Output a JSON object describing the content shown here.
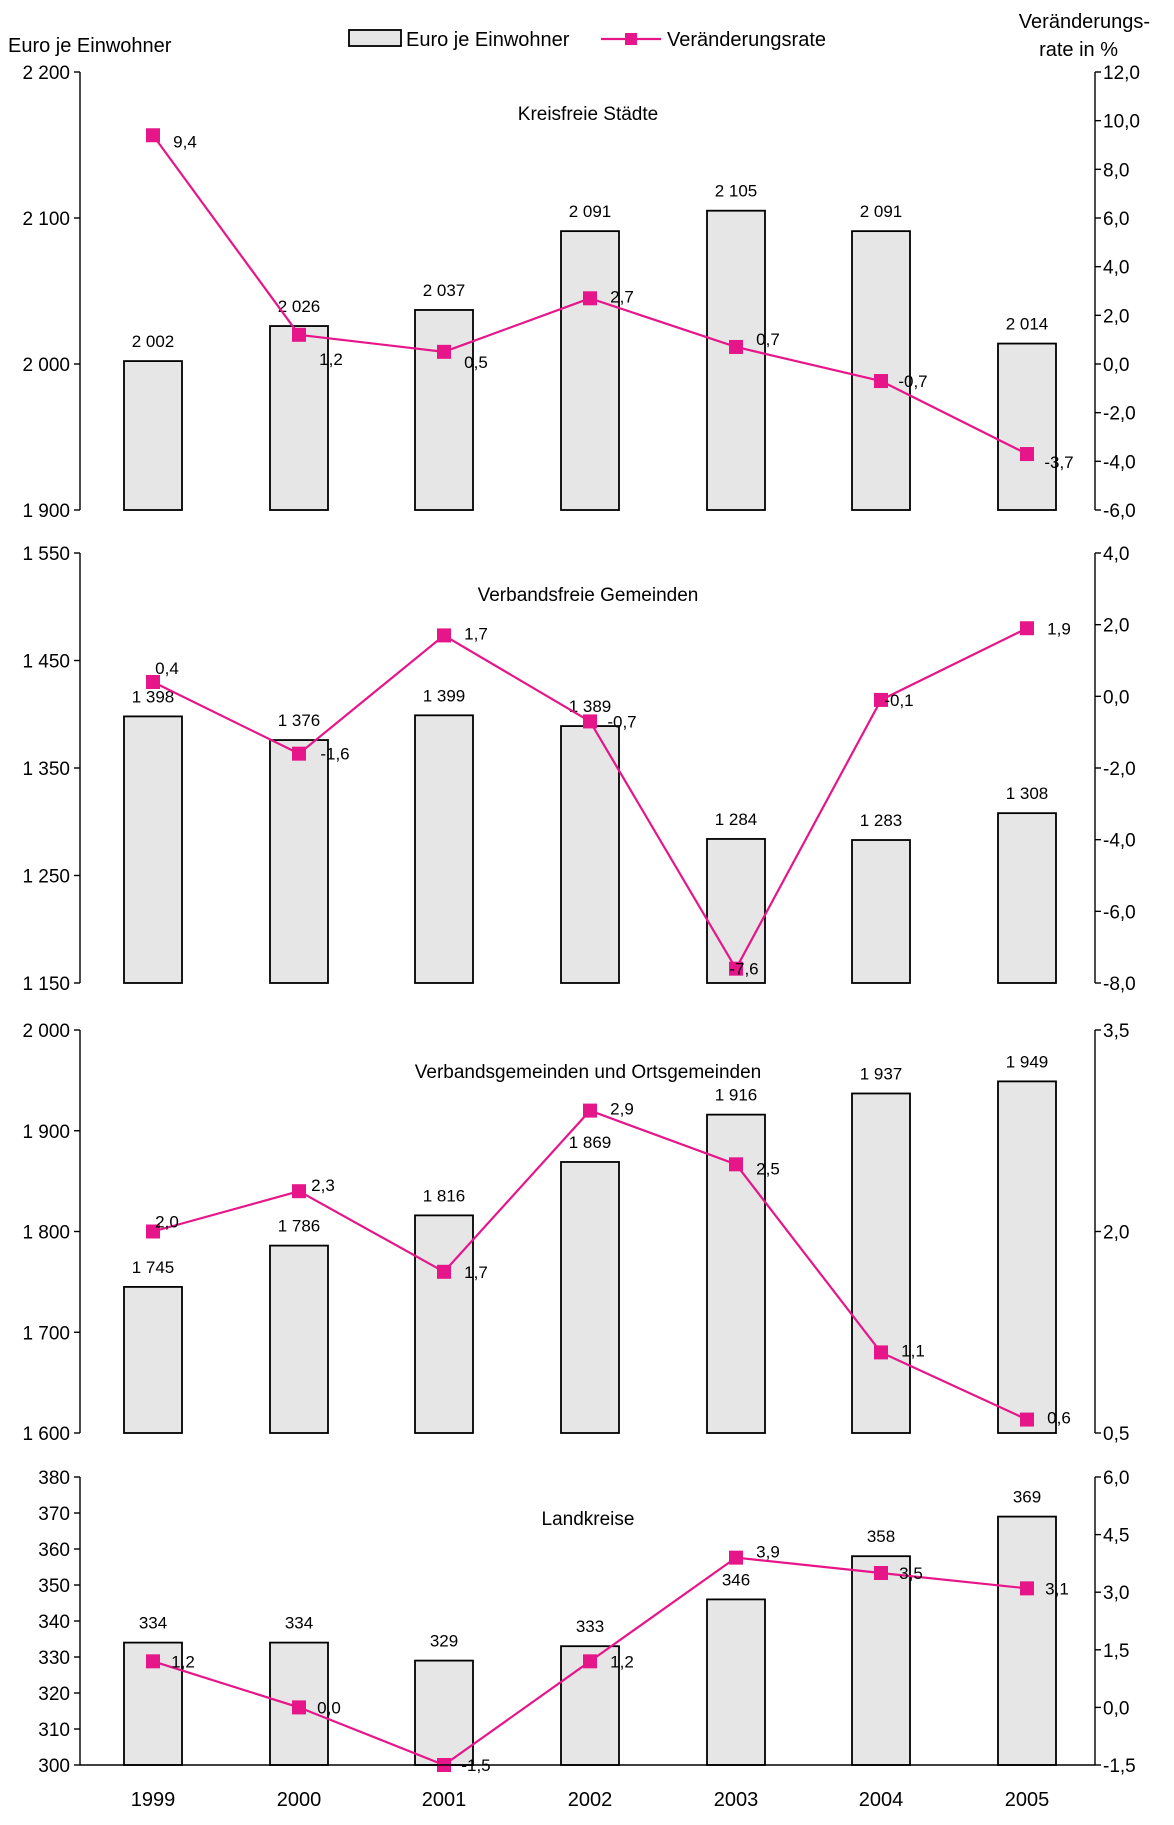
{
  "legend": {
    "bar_label": "Euro je Einwohner",
    "line_label": "Veränderungsrate"
  },
  "left_axis_title": "Euro je Einwohner",
  "right_axis_title_line1": "Veränderungs-",
  "right_axis_title_line2": "rate in %",
  "colors": {
    "bar_fill": "#e6e6e6",
    "line": "#e6168a",
    "axis": "#000000"
  },
  "categories": [
    "1999",
    "2000",
    "2001",
    "2002",
    "2003",
    "2004",
    "2005"
  ],
  "chart_data": [
    {
      "type": "bar",
      "title": "Kreisfreie Städte",
      "categories": [
        "1999",
        "2000",
        "2001",
        "2002",
        "2003",
        "2004",
        "2005"
      ],
      "series": [
        {
          "name": "Euro je Einwohner",
          "type": "bar",
          "axis": "left",
          "values": [
            2002,
            2026,
            2037,
            2091,
            2105,
            2091,
            2014
          ],
          "labels": [
            "2 002",
            "2 026",
            "2 037",
            "2 091",
            "2 105",
            "2 091",
            "2 014"
          ]
        },
        {
          "name": "Veränderungsrate",
          "type": "line",
          "axis": "right",
          "values": [
            9.4,
            1.2,
            0.5,
            2.7,
            0.7,
            -0.7,
            -3.7
          ],
          "labels": [
            "9,4",
            "1,2",
            "0,5",
            "2,7",
            "0,7",
            "-0,7",
            "-3,7"
          ]
        }
      ],
      "ylim": [
        1900,
        2200
      ],
      "yticks": [
        "1 900",
        "2 000",
        "2 100",
        "2 200"
      ],
      "y2lim": [
        -6,
        12
      ],
      "y2ticks": [
        "-6,0",
        "-4,0",
        "-2,0",
        "0,0",
        "2,0",
        "4,0",
        "6,0",
        "8,0",
        "10,0",
        "12,0"
      ]
    },
    {
      "type": "bar",
      "title": "Verbandsfreie Gemeinden",
      "categories": [
        "1999",
        "2000",
        "2001",
        "2002",
        "2003",
        "2004",
        "2005"
      ],
      "series": [
        {
          "name": "Euro je Einwohner",
          "type": "bar",
          "axis": "left",
          "values": [
            1398,
            1376,
            1399,
            1389,
            1284,
            1283,
            1308
          ],
          "labels": [
            "1 398",
            "1 376",
            "1 399",
            "1 389",
            "1 284",
            "1 283",
            "1 308"
          ]
        },
        {
          "name": "Veränderungsrate",
          "type": "line",
          "axis": "right",
          "values": [
            0.4,
            -1.6,
            1.7,
            -0.7,
            -7.6,
            -0.1,
            1.9
          ],
          "labels": [
            "0,4",
            "-1,6",
            "1,7",
            "-0,7",
            "-7,6",
            "-0,1",
            "1,9"
          ]
        }
      ],
      "ylim": [
        1150,
        1550
      ],
      "yticks": [
        "1 150",
        "1 250",
        "1 350",
        "1 450",
        "1 550"
      ],
      "y2lim": [
        -8,
        4
      ],
      "y2ticks": [
        "-8,0",
        "-6,0",
        "-4,0",
        "-2,0",
        "0,0",
        "2,0",
        "4,0"
      ]
    },
    {
      "type": "bar",
      "title": "Verbandsgemeinden und Ortsgemeinden",
      "categories": [
        "1999",
        "2000",
        "2001",
        "2002",
        "2003",
        "2004",
        "2005"
      ],
      "series": [
        {
          "name": "Euro je Einwohner",
          "type": "bar",
          "axis": "left",
          "values": [
            1745,
            1786,
            1816,
            1869,
            1916,
            1937,
            1949
          ],
          "labels": [
            "1 745",
            "1 786",
            "1 816",
            "1 869",
            "1 916",
            "1 937",
            "1 949"
          ]
        },
        {
          "name": "Veränderungsrate",
          "type": "line",
          "axis": "right",
          "values": [
            2.0,
            2.3,
            1.7,
            2.9,
            2.5,
            1.1,
            0.6
          ],
          "labels": [
            "2,0",
            "2,3",
            "1,7",
            "2,9",
            "2,5",
            "1,1",
            "0,6"
          ]
        }
      ],
      "ylim": [
        1600,
        2000
      ],
      "yticks": [
        "1 600",
        "1 700",
        "1 800",
        "1 900",
        "2 000"
      ],
      "y2lim": [
        0.5,
        3.5
      ],
      "y2ticks": [
        "0,5",
        "2,0",
        "3,5"
      ]
    },
    {
      "type": "bar",
      "title": "Landkreise",
      "categories": [
        "1999",
        "2000",
        "2001",
        "2002",
        "2003",
        "2004",
        "2005"
      ],
      "series": [
        {
          "name": "Euro je Einwohner",
          "type": "bar",
          "axis": "left",
          "values": [
            334,
            334,
            329,
            333,
            346,
            358,
            369
          ],
          "labels": [
            "334",
            "334",
            "329",
            "333",
            "346",
            "358",
            "369"
          ]
        },
        {
          "name": "Veränderungsrate",
          "type": "line",
          "axis": "right",
          "values": [
            1.2,
            0.0,
            -1.5,
            1.2,
            3.9,
            3.5,
            3.1
          ],
          "labels": [
            "1,2",
            "0,0",
            "-1,5",
            "1,2",
            "3,9",
            "3,5",
            "3,1"
          ]
        }
      ],
      "ylim": [
        300,
        380
      ],
      "yticks": [
        "300",
        "310",
        "320",
        "330",
        "340",
        "350",
        "360",
        "370",
        "380"
      ],
      "y2lim": [
        -1.5,
        6
      ],
      "y2ticks": [
        "-1,5",
        "0,0",
        "1,5",
        "3,0",
        "4,5",
        "6,0"
      ]
    }
  ]
}
